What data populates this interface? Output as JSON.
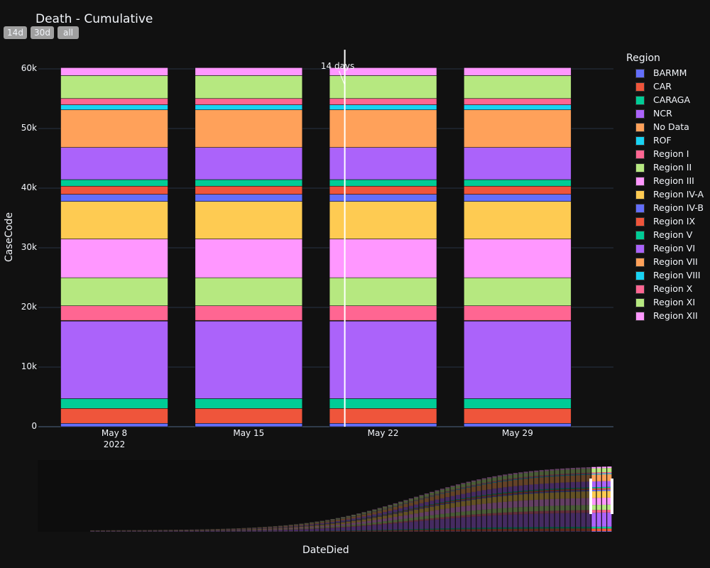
{
  "chart_data": {
    "type": "bar",
    "title": "Death - Cumulative",
    "xlabel": "DateDied",
    "ylabel": "CaseCode",
    "ylim": [
      0,
      60000
    ],
    "y_ticks": [
      "0",
      "10k",
      "20k",
      "30k",
      "40k",
      "50k",
      "60k"
    ],
    "categories": [
      "May 8",
      "May 15",
      "May 22",
      "May 29"
    ],
    "x_tick_sub": "2022",
    "legend_title": "Region",
    "legend_position": "right",
    "grid": true,
    "annotation": {
      "text": "14 days",
      "category": "May 22"
    },
    "range_buttons": [
      "14d",
      "30d",
      "all"
    ],
    "series": [
      {
        "name": "BARMM",
        "color": "#636efa",
        "values": [
          560,
          560,
          560,
          560
        ]
      },
      {
        "name": "CAR",
        "color": "#EF553B",
        "values": [
          2500,
          2500,
          2500,
          2500
        ]
      },
      {
        "name": "CARAGA",
        "color": "#00cc96",
        "values": [
          1650,
          1650,
          1650,
          1650
        ]
      },
      {
        "name": "NCR",
        "color": "#ab63fa",
        "values": [
          13000,
          13000,
          13000,
          13000
        ]
      },
      {
        "name": "No Data",
        "color": "#FFA15A",
        "values": [
          100,
          100,
          100,
          100
        ]
      },
      {
        "name": "ROF",
        "color": "#19d3f3",
        "values": [
          20,
          20,
          20,
          20
        ]
      },
      {
        "name": "Region I",
        "color": "#FF6692",
        "values": [
          2450,
          2450,
          2450,
          2450
        ]
      },
      {
        "name": "Region II",
        "color": "#B6E880",
        "values": [
          4700,
          4700,
          4700,
          4700
        ]
      },
      {
        "name": "Region III",
        "color": "#FF97FF",
        "values": [
          6500,
          6500,
          6500,
          6500
        ]
      },
      {
        "name": "Region IV-A",
        "color": "#FECB52",
        "values": [
          6300,
          6300,
          6300,
          6300
        ]
      },
      {
        "name": "Region IV-B",
        "color": "#636efa",
        "values": [
          1200,
          1200,
          1200,
          1200
        ]
      },
      {
        "name": "Region IX",
        "color": "#EF553B",
        "values": [
          1350,
          1350,
          1350,
          1350
        ]
      },
      {
        "name": "Region V",
        "color": "#00cc96",
        "values": [
          1100,
          1100,
          1100,
          1100
        ]
      },
      {
        "name": "Region VI",
        "color": "#ab63fa",
        "values": [
          5400,
          5400,
          5400,
          5400
        ]
      },
      {
        "name": "Region VII",
        "color": "#FFA15A",
        "values": [
          6300,
          6300,
          6300,
          6300
        ]
      },
      {
        "name": "Region VIII",
        "color": "#19d3f3",
        "values": [
          850,
          850,
          850,
          850
        ]
      },
      {
        "name": "Region X",
        "color": "#FF6692",
        "values": [
          1050,
          1050,
          1050,
          1050
        ]
      },
      {
        "name": "Region XI",
        "color": "#B6E880",
        "values": [
          3850,
          3850,
          3850,
          3850
        ]
      },
      {
        "name": "Region XII",
        "color": "#FF97FF",
        "values": [
          1320,
          1320,
          1320,
          1320
        ]
      }
    ]
  }
}
